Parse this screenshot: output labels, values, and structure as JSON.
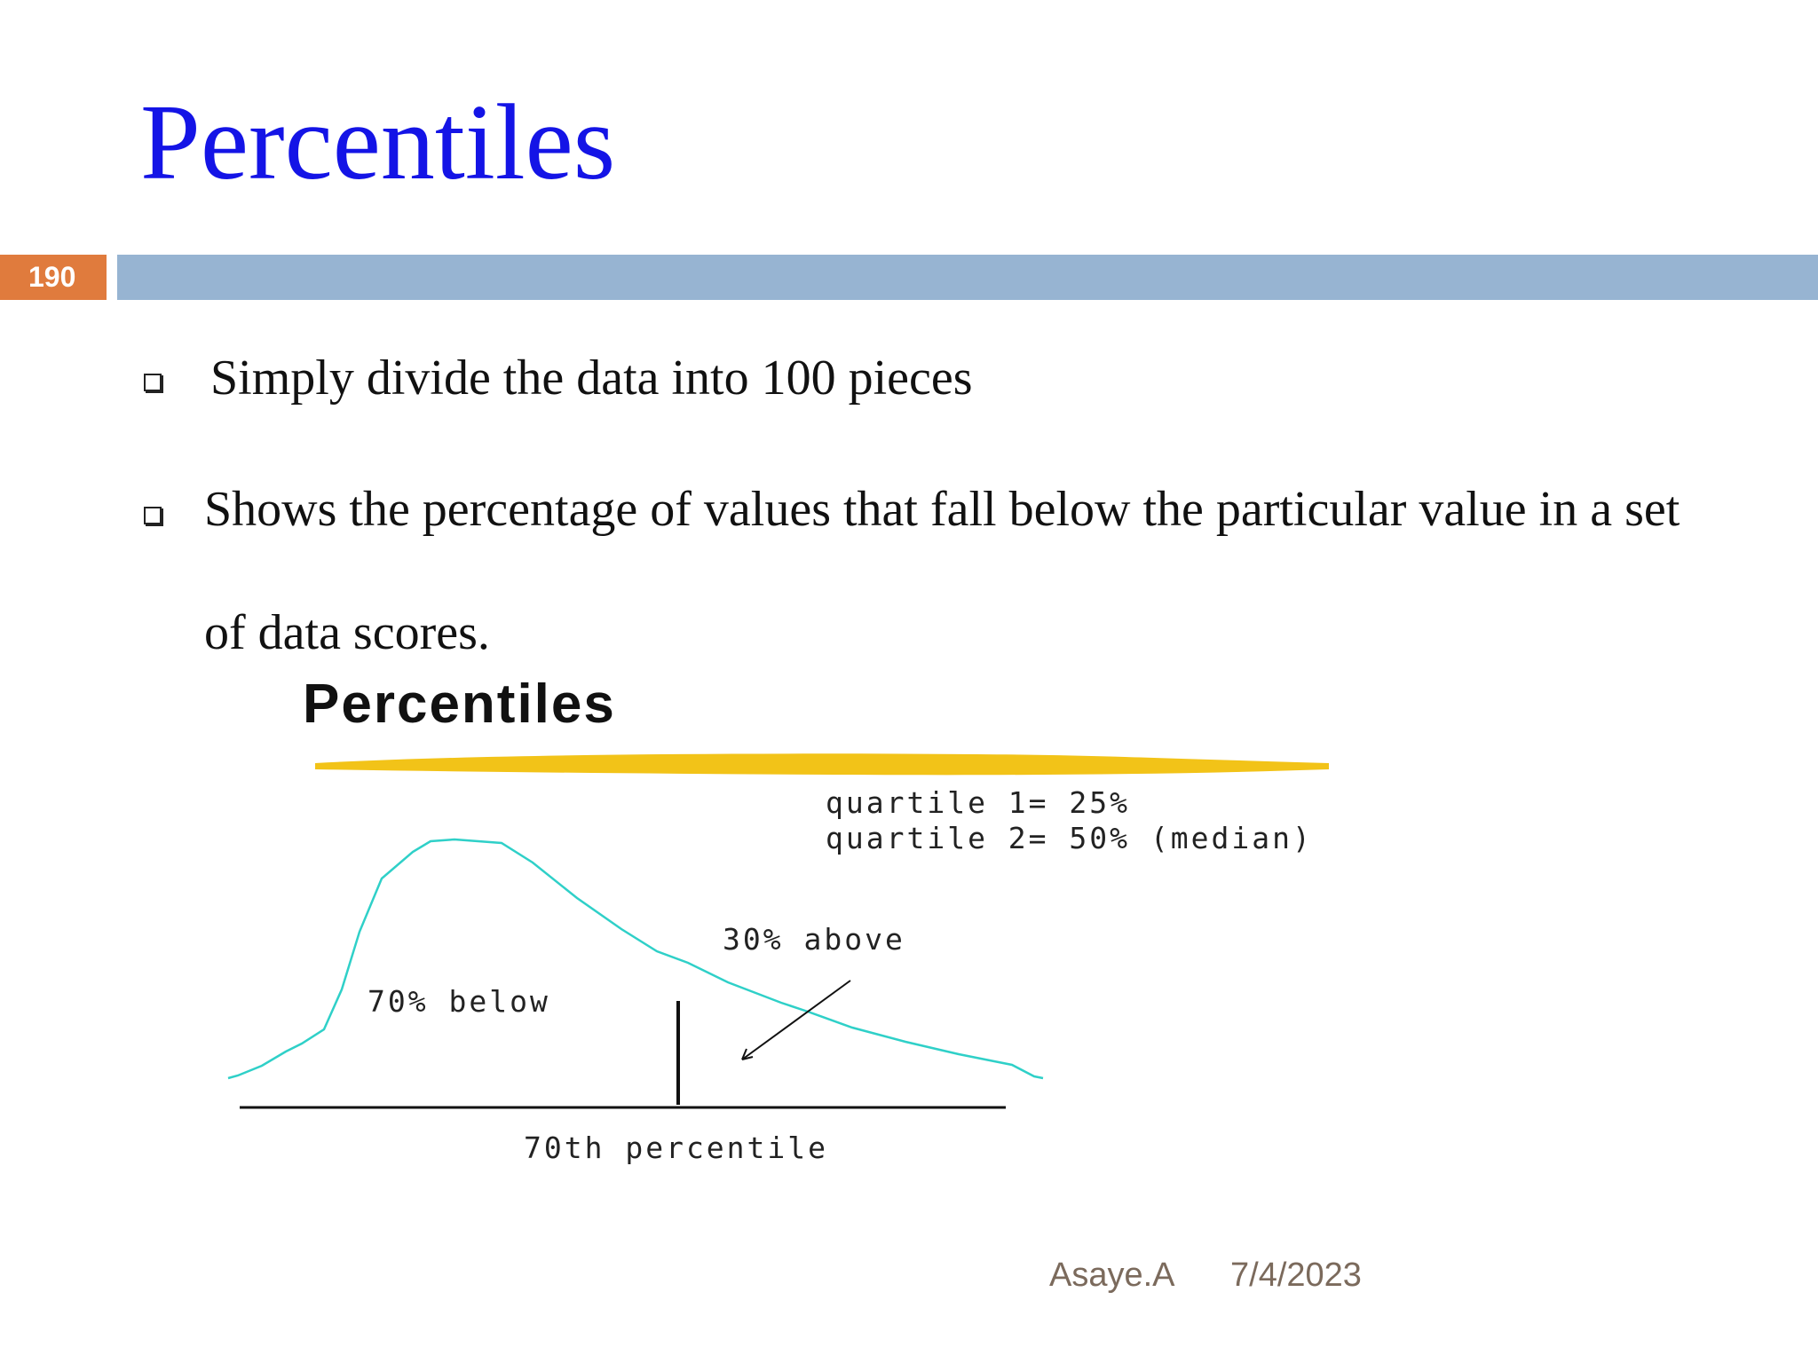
{
  "slide": {
    "title": "Percentiles",
    "number": "190"
  },
  "bullets": [
    {
      "text": "Simply divide the data into 100 pieces"
    },
    {
      "text_line1": "Shows the percentage of values that fall below the particular value in a set",
      "text_line2": "of data scores."
    }
  ],
  "figure": {
    "heading": "Percentiles",
    "quartile_line1": "quartile 1= 25%",
    "quartile_line2": "quartile 2= 50% (median)",
    "above_label": "30% above",
    "below_label": "70% below",
    "axis_label": "70th percentile",
    "highlight_color": "#f2c318",
    "curve_color": "#2fd0c8"
  },
  "footer": {
    "author": "Asaye.A",
    "date": "7/4/2023"
  }
}
